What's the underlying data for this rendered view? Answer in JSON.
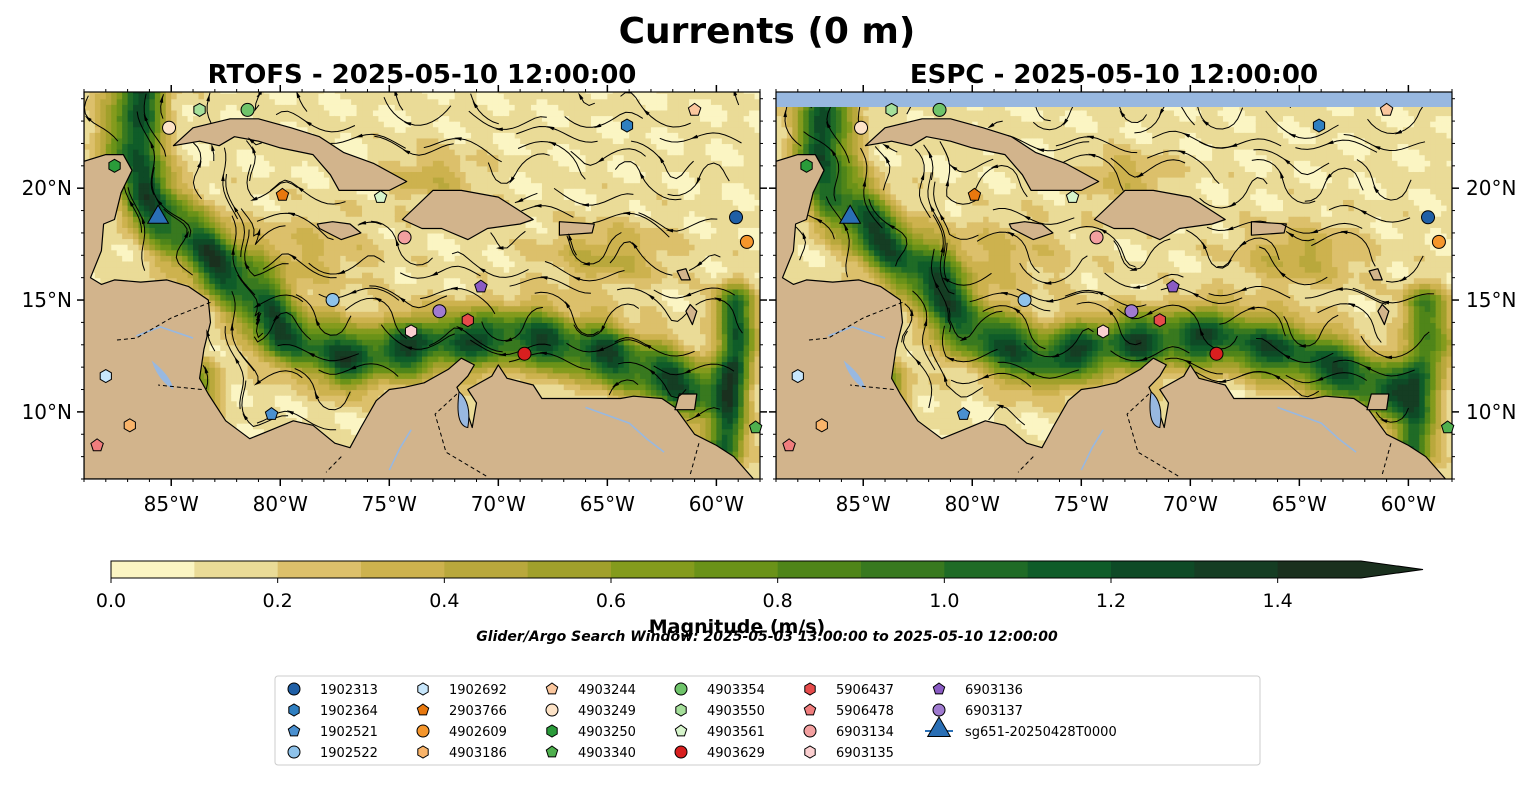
{
  "figure": {
    "title": "Currents (0 m)",
    "panels": [
      {
        "title": "RTOFS - 2025-05-10 12:00:00"
      },
      {
        "title": "ESPC - 2025-05-10 12:00:00"
      }
    ],
    "search_window": "Glider/Argo Search Window: 2025-05-03 13:00:00 to 2025-05-10 12:00:00"
  },
  "colorbar": {
    "label": "Magnitude (m/s)",
    "ticks": [
      "0.0",
      "0.2",
      "0.4",
      "0.6",
      "0.8",
      "1.0",
      "1.2",
      "1.4"
    ],
    "levels": [
      0.0,
      0.1,
      0.2,
      0.3,
      0.4,
      0.5,
      0.6,
      0.7,
      0.8,
      0.9,
      1.0,
      1.1,
      1.2,
      1.3,
      1.4,
      1.5
    ],
    "colors": [
      "#fbf5c3",
      "#eadb97",
      "#dcc06b",
      "#cdb24e",
      "#b9a83c",
      "#a1a02b",
      "#849b1d",
      "#6a9218",
      "#4f8519",
      "#38791f",
      "#1f6b26",
      "#0f5c29",
      "#0e4a26",
      "#153d23",
      "#1a301e"
    ],
    "extend": "max"
  },
  "chart_data": [
    {
      "type": "map",
      "model": "RTOFS",
      "variable": "Current magnitude (m/s)",
      "depth_m": 0,
      "datetime": "2025-05-10 12:00:00",
      "lon_ticks": [
        -85,
        -80,
        -75,
        -70,
        -65,
        -60
      ],
      "lon_labels": [
        "85°W",
        "80°W",
        "75°W",
        "70°W",
        "65°W",
        "60°W"
      ],
      "lat_ticks": [
        10,
        15,
        20
      ],
      "lat_labels": [
        "10°N",
        "15°N",
        "20°N"
      ],
      "xlim": [
        -89,
        -58
      ],
      "ylim": [
        7,
        24.3
      ],
      "lat_labels_side": "left"
    },
    {
      "type": "map",
      "model": "ESPC",
      "variable": "Current magnitude (m/s)",
      "depth_m": 0,
      "datetime": "2025-05-10 12:00:00",
      "lon_ticks": [
        -85,
        -80,
        -75,
        -70,
        -65,
        -60
      ],
      "lon_labels": [
        "85°W",
        "80°W",
        "75°W",
        "70°W",
        "65°W",
        "60°W"
      ],
      "lat_ticks": [
        10,
        15,
        20
      ],
      "lat_labels": [
        "10°N",
        "15°N",
        "20°N"
      ],
      "xlim": [
        -89,
        -58
      ],
      "ylim": [
        7,
        24.3
      ],
      "lat_labels_side": "right"
    }
  ],
  "platforms": [
    {
      "id": "1902313",
      "marker": "circle",
      "color": "#1f5fa6",
      "lon": -59.1,
      "lat": 18.7
    },
    {
      "id": "1902364",
      "marker": "hexagon",
      "color": "#2f7fc1",
      "lon": -64.1,
      "lat": 22.8
    },
    {
      "id": "1902521",
      "marker": "pentagon",
      "color": "#4a90d0",
      "lon": -80.4,
      "lat": 9.9
    },
    {
      "id": "1902522",
      "marker": "circle",
      "color": "#8ec2ea",
      "lon": -77.6,
      "lat": 15.0
    },
    {
      "id": "1902692",
      "marker": "hexagon",
      "color": "#c7e6fb",
      "lon": -88.0,
      "lat": 11.6
    },
    {
      "id": "2903766",
      "marker": "pentagon",
      "color": "#e8780e",
      "lon": -79.9,
      "lat": 19.7
    },
    {
      "id": "4902609",
      "marker": "circle",
      "color": "#f5962c",
      "lon": -58.6,
      "lat": 17.6
    },
    {
      "id": "4903186",
      "marker": "hexagon",
      "color": "#f9b46a",
      "lon": -86.9,
      "lat": 9.4
    },
    {
      "id": "4903244",
      "marker": "pentagon",
      "color": "#fbc79e",
      "lon": -61.0,
      "lat": 23.5
    },
    {
      "id": "4903249",
      "marker": "circle",
      "color": "#fde3c7",
      "lon": -85.1,
      "lat": 22.7
    },
    {
      "id": "4903250",
      "marker": "hexagon",
      "color": "#2a9b3a",
      "lon": -87.6,
      "lat": 21.0
    },
    {
      "id": "4903340",
      "marker": "pentagon",
      "color": "#4fb04e",
      "lon": -58.2,
      "lat": 9.3
    },
    {
      "id": "4903354",
      "marker": "circle",
      "color": "#6fc46a",
      "lon": -81.5,
      "lat": 23.5
    },
    {
      "id": "4903550",
      "marker": "hexagon",
      "color": "#a5df9a",
      "lon": -83.7,
      "lat": 23.5
    },
    {
      "id": "4903561",
      "marker": "pentagon",
      "color": "#d7f5cc",
      "lon": -75.4,
      "lat": 19.6
    },
    {
      "id": "4903629",
      "marker": "circle",
      "color": "#d81f1f",
      "lon": -68.8,
      "lat": 12.6
    },
    {
      "id": "5906437",
      "marker": "hexagon",
      "color": "#e64b4b",
      "lon": -71.4,
      "lat": 14.1
    },
    {
      "id": "5906478",
      "marker": "pentagon",
      "color": "#f07d7d",
      "lon": -88.4,
      "lat": 8.5
    },
    {
      "id": "6903134",
      "marker": "circle",
      "color": "#f3a0a0",
      "lon": -74.3,
      "lat": 17.8
    },
    {
      "id": "6903135",
      "marker": "hexagon",
      "color": "#fbcfd0",
      "lon": -74.0,
      "lat": 13.6
    },
    {
      "id": "6903136",
      "marker": "pentagon",
      "color": "#8a5bc4",
      "lon": -70.8,
      "lat": 15.6
    },
    {
      "id": "6903137",
      "marker": "circle",
      "color": "#a07bd0",
      "lon": -72.7,
      "lat": 14.5
    },
    {
      "id": "sg651-20250428T0000",
      "marker": "triangle",
      "color": "#2a6fb5",
      "lon": -85.6,
      "lat": 18.7
    }
  ]
}
